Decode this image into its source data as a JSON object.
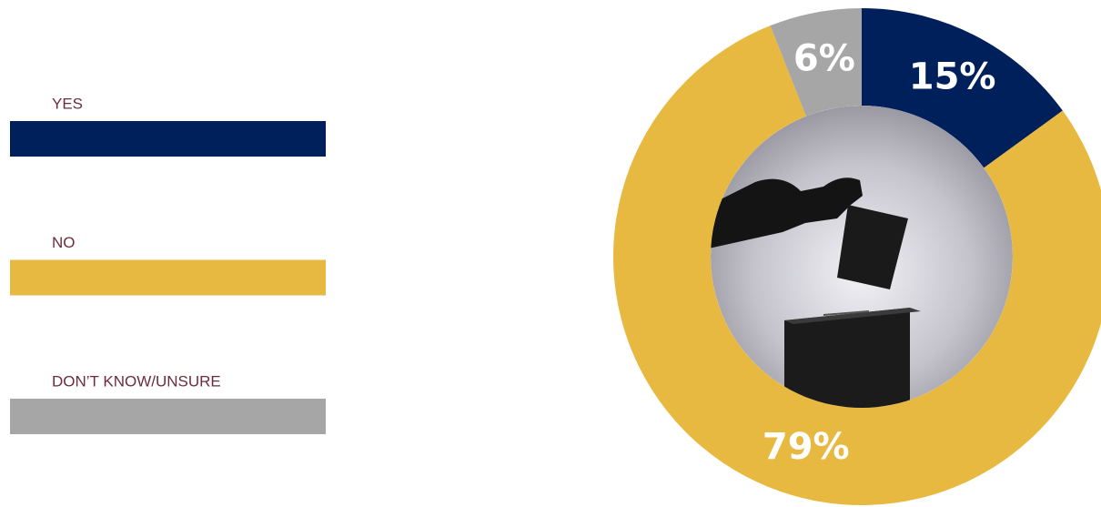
{
  "chart_data": {
    "type": "pie",
    "categories": [
      "YES",
      "NO",
      "DON’T KNOW/UNSURE"
    ],
    "values": [
      15,
      79,
      6
    ],
    "value_labels": [
      "15%",
      "79%",
      "6%"
    ],
    "colors": [
      "#00205b",
      "#e8b940",
      "#a6a6a6"
    ]
  }
}
